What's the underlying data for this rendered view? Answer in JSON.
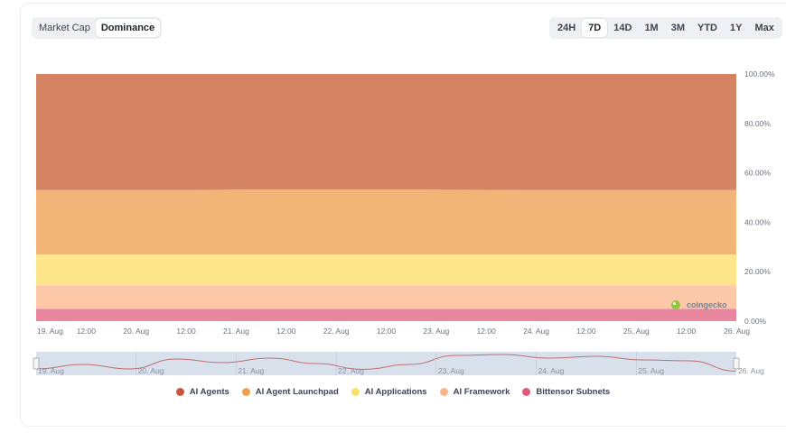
{
  "toggle": {
    "options": [
      "Market Cap",
      "Dominance"
    ],
    "active": "Dominance"
  },
  "ranges": {
    "options": [
      "24H",
      "7D",
      "14D",
      "1M",
      "3M",
      "YTD",
      "1Y",
      "Max"
    ],
    "active": "7D"
  },
  "watermark": "coingecko",
  "chart_data": {
    "type": "area",
    "stacking": "percent",
    "x": [
      "19. Aug",
      "12:00",
      "20. Aug",
      "12:00",
      "21. Aug",
      "12:00",
      "22. Aug",
      "12:00",
      "23. Aug",
      "12:00",
      "24. Aug",
      "12:00",
      "25. Aug",
      "12:00",
      "26. Aug"
    ],
    "series": [
      {
        "name": "Bittensor Subnets",
        "color": "#e8869f",
        "values": [
          5,
          5,
          5,
          5,
          5,
          5,
          5,
          5,
          5,
          5,
          5,
          5,
          5,
          5,
          5
        ]
      },
      {
        "name": "AI Framework",
        "color": "#fcc8a8",
        "values": [
          9.5,
          9.5,
          9.5,
          9.5,
          9.5,
          9.5,
          9.5,
          9.5,
          9.5,
          9.5,
          9.5,
          9.5,
          9.5,
          9.5,
          9.5
        ]
      },
      {
        "name": "AI Applications",
        "color": "#fce58b",
        "values": [
          12.5,
          12.5,
          12.5,
          12.5,
          12.5,
          12.5,
          12.5,
          12.5,
          12.5,
          12.5,
          12.5,
          12.5,
          12.5,
          12.5,
          12.5
        ]
      },
      {
        "name": "AI Agent Launchpad",
        "color": "#f2b577",
        "values": [
          26,
          26,
          26,
          26,
          26.2,
          26.3,
          26.3,
          26.3,
          26.2,
          26.1,
          26,
          26,
          26,
          26,
          26
        ]
      },
      {
        "name": "AI Agents",
        "color": "#d48462",
        "values": [
          47,
          47,
          47,
          47,
          46.8,
          46.7,
          46.7,
          46.7,
          46.8,
          46.9,
          47,
          47,
          47,
          47,
          47
        ]
      }
    ],
    "legend_order": [
      "AI Agents",
      "AI Agent Launchpad",
      "AI Applications",
      "AI Framework",
      "Bittensor Subnets"
    ],
    "legend_colors": [
      "#c8553d",
      "#f0a050",
      "#f5e266",
      "#f7b58a",
      "#e05a7e"
    ],
    "yticks": [
      "0.00%",
      "20.00%",
      "40.00%",
      "60.00%",
      "80.00%",
      "100.00%"
    ],
    "ylim": [
      0,
      100
    ],
    "navigator": {
      "labels": [
        "19. Aug",
        "20. Aug",
        "21. Aug",
        "22. Aug",
        "23. Aug",
        "24. Aug",
        "25. Aug",
        "26. Aug"
      ],
      "values": [
        20,
        45,
        20,
        75,
        55,
        80,
        50,
        18,
        45,
        95,
        100,
        80,
        90,
        70,
        65,
        8
      ]
    }
  }
}
